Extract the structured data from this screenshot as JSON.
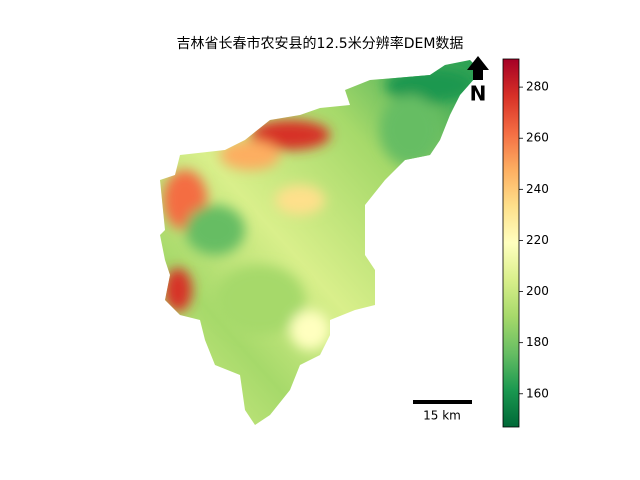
{
  "title": "吉林省长春市农安县的12.5米分辨率DEM数据",
  "colorbar": {
    "range": [
      147,
      291
    ],
    "ticks": [
      160,
      180,
      200,
      220,
      240,
      260,
      280
    ],
    "colormap": [
      "#006837",
      "#1a9850",
      "#66bd63",
      "#a6d96a",
      "#d9ef8b",
      "#ffffbf",
      "#fee08b",
      "#fdae61",
      "#f46d43",
      "#d73027",
      "#a50026"
    ]
  },
  "north_arrow": "N",
  "scale_bar": {
    "label": "15 km"
  }
}
